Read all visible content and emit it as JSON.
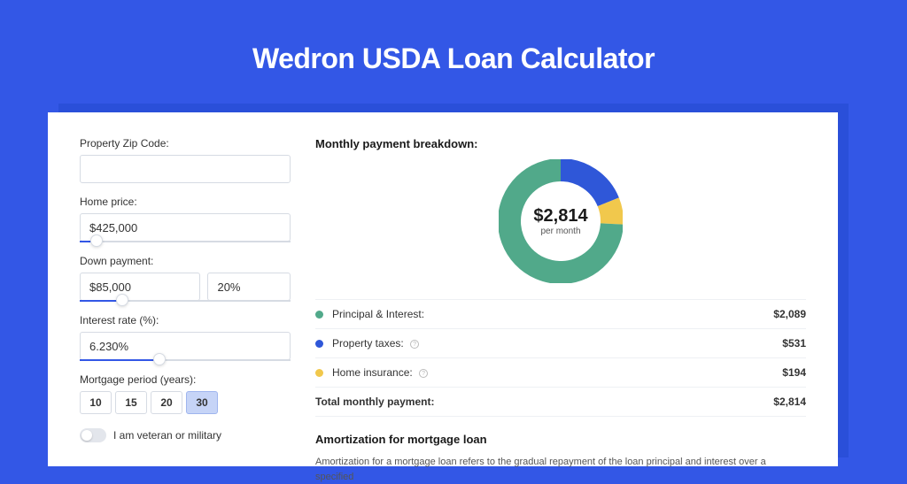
{
  "hero": {
    "title": "Wedron USDA Loan Calculator"
  },
  "colors": {
    "bg": "#3357e6",
    "principal": "#51a98a",
    "taxes": "#2f57d8",
    "insurance": "#f1c84c"
  },
  "form": {
    "zip": {
      "label": "Property Zip Code:",
      "value": ""
    },
    "price": {
      "label": "Home price:",
      "value": "$425,000",
      "slider_pct": 8
    },
    "down": {
      "label": "Down payment:",
      "amount": "$85,000",
      "pct": "20%",
      "slider_pct": 20
    },
    "rate": {
      "label": "Interest rate (%):",
      "value": "6.230%",
      "slider_pct": 38
    },
    "period": {
      "label": "Mortgage period (years):",
      "options": [
        "10",
        "15",
        "20",
        "30"
      ],
      "selected": "30"
    },
    "veteran": {
      "label": "I am veteran or military",
      "checked": false
    }
  },
  "breakdown": {
    "title": "Monthly payment breakdown:",
    "total": "$2,814",
    "total_sub": "per month",
    "items": [
      {
        "label": "Principal & Interest:",
        "value": "$2,089",
        "color": "#51a98a",
        "info": false,
        "pct": 74.2
      },
      {
        "label": "Property taxes:",
        "value": "$531",
        "color": "#2f57d8",
        "info": true,
        "pct": 18.9
      },
      {
        "label": "Home insurance:",
        "value": "$194",
        "color": "#f1c84c",
        "info": true,
        "pct": 6.9
      }
    ],
    "total_row": {
      "label": "Total monthly payment:",
      "value": "$2,814"
    }
  },
  "donut": {
    "radius": 58,
    "stroke": 26,
    "segments": [
      {
        "color": "#2f57d8",
        "start": -90,
        "sweep": 68
      },
      {
        "color": "#f1c84c",
        "start": -22,
        "sweep": 25
      },
      {
        "color": "#51a98a",
        "start": 3,
        "sweep": 267
      }
    ]
  },
  "amort": {
    "title": "Amortization for mortgage loan",
    "text": "Amortization for a mortgage loan refers to the gradual repayment of the loan principal and interest over a specified"
  }
}
